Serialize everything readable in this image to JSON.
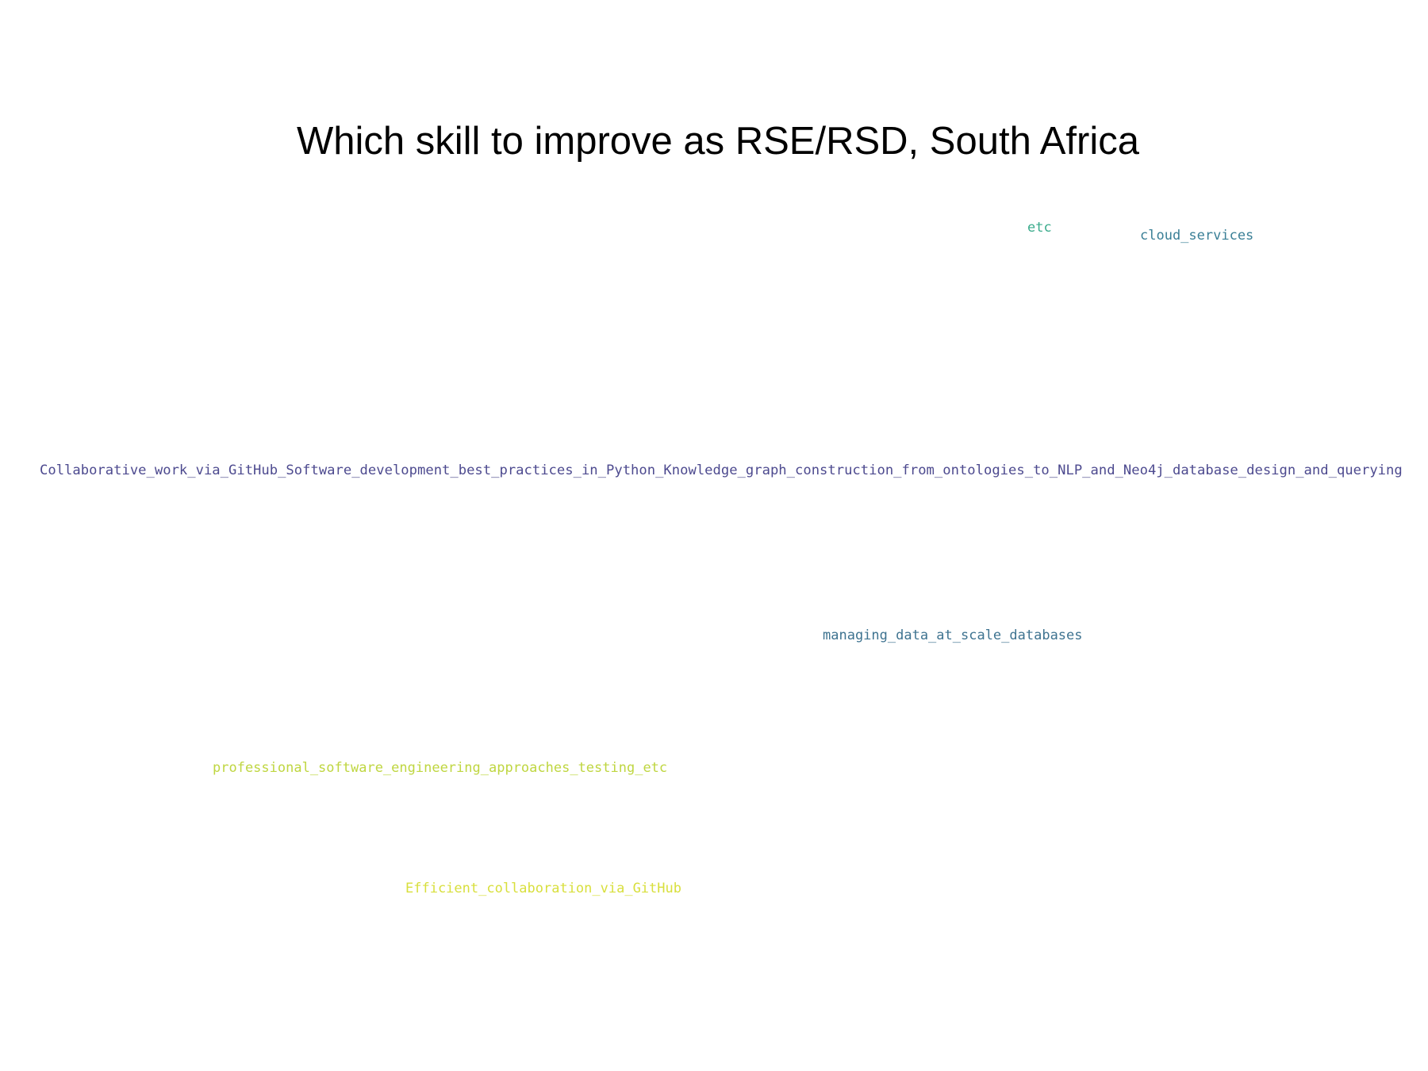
{
  "title": "Which skill to improve as RSE/RSD, South Africa",
  "words": [
    {
      "text": "etc",
      "color": "#3bab8c"
    },
    {
      "text": "cloud_services",
      "color": "#3a7f96"
    },
    {
      "text": "Collaborative_work_via_GitHub_Software_development_best_practices_in_Python_Knowledge_graph_construction_from_ontologies_to_NLP_and_Neo4j_database_design_and_querying",
      "color": "#4d4a8f"
    },
    {
      "text": "managing_data_at_scale_databases",
      "color": "#3e7390"
    },
    {
      "text": "professional_software_engineering_approaches_testing_etc",
      "color": "#bfd640"
    },
    {
      "text": "Efficient_collaboration_via_GitHub",
      "color": "#d8df3c"
    }
  ]
}
